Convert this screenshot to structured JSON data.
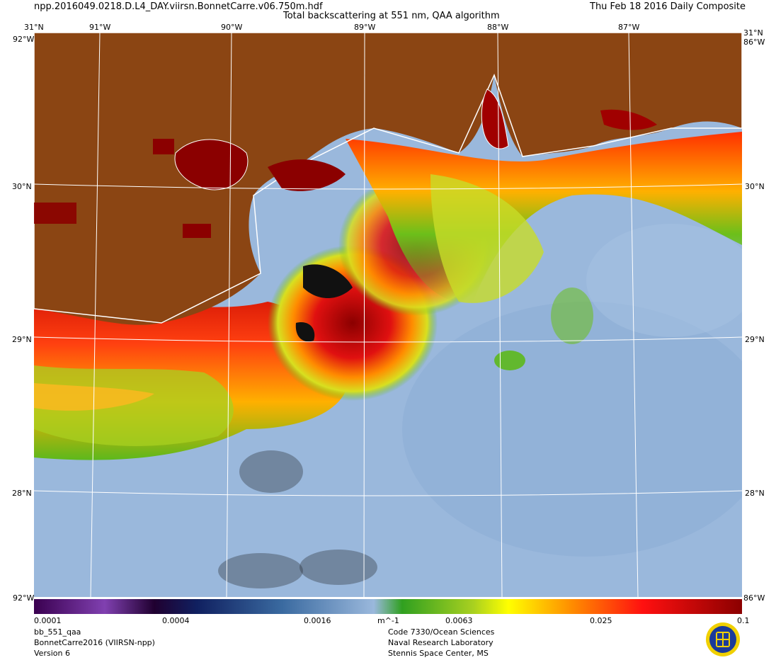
{
  "header": {
    "filename": "npp.2016049.0218.D.L4_DAY.viirsn.BonnetCarre.v06.750m.hdf",
    "product_title": "Total backscattering at 551 nm, QAA algorithm",
    "date_label": "Thu Feb 18 2016 Daily Composite"
  },
  "graticule": {
    "top_labels": [
      "31°N",
      "91°W",
      "90°W",
      "89°W",
      "88°W",
      "87°W",
      "31°N"
    ],
    "left_lat_labels": [
      "30°N",
      "29°N",
      "28°N"
    ],
    "right_lat_labels": [
      "30°N",
      "29°N",
      "28°N"
    ],
    "corner_labels": {
      "top_left": "92°W",
      "top_right": "86°W",
      "bottom_left": "92°W",
      "bottom_right": "86°W"
    }
  },
  "colorbar": {
    "tick_labels": [
      "0.0001",
      "0.0004",
      "0.0016",
      "0.0063",
      "0.025",
      "0.1"
    ],
    "unit": "m^-1"
  },
  "footer": {
    "left": [
      "bb_551_qaa",
      "BonnetCarre2016 (VIIRSN-npp)",
      "Version 6"
    ],
    "center": [
      "Code 7330/Ocean Sciences",
      "Naval Research Laboratory",
      "Stennis Space Center, MS"
    ]
  },
  "colors": {
    "land": "#8b4513",
    "ocean_low": "#9ab8dc",
    "plume_high": "#b00000",
    "plume_mid": "#ff8c00",
    "plume_low": "#5db81c",
    "graticule": "#ffffff"
  }
}
